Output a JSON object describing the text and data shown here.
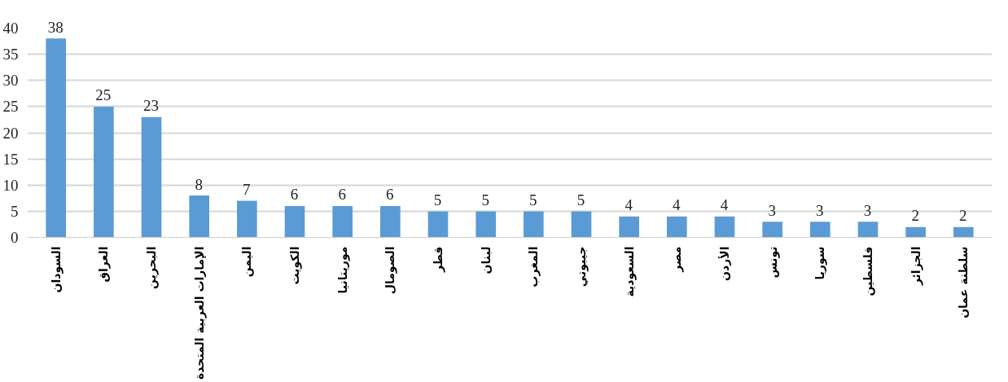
{
  "chart_data": {
    "type": "bar",
    "categories": [
      "السودان",
      "العراق",
      "البحرين",
      "الإمارات العربية المتحدة",
      "اليمن",
      "الكويت",
      "موريتانيا",
      "الصومال",
      "قطر",
      "لبنان",
      "المغرب",
      "جيبوتي",
      "السعودية",
      "مصر",
      "الأردن",
      "تونس",
      "سوريا",
      "فلسطين",
      "الجزائر",
      "سلطنة عمان"
    ],
    "values": [
      38,
      25,
      23,
      8,
      7,
      6,
      6,
      6,
      5,
      5,
      5,
      5,
      4,
      4,
      4,
      3,
      3,
      3,
      2,
      2
    ],
    "color": "#5b9bd5",
    "ylim": [
      0,
      40
    ],
    "yticks": [
      0,
      5,
      10,
      15,
      20,
      25,
      30,
      35,
      40
    ],
    "grid": "y",
    "data_labels": true,
    "legend": false
  }
}
